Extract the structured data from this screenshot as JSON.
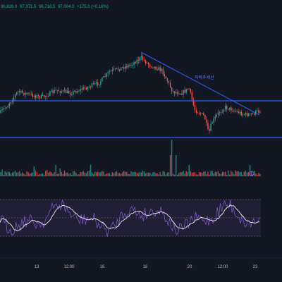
{
  "ohlc_readout": {
    "open": "96,829.0",
    "high": "97,371.5",
    "low": "96,716.5",
    "close": "97,004.0",
    "change": "+175.0 (+0.18%)"
  },
  "colors": {
    "background": "#131722",
    "up": "#26a69a",
    "down": "#ef5350",
    "drawing": "#2962ff",
    "rsi_band": "#7e57c2",
    "rsi_line": "#7e57c2",
    "rsi_ma": "#f0f0f0"
  },
  "annotation": {
    "label": "하락추세선"
  },
  "time_axis": [
    "13",
    "12:00",
    "16",
    "18",
    "20",
    "12:00",
    "23"
  ],
  "chart_data": [
    {
      "type": "candlestick",
      "description": "price pane",
      "trend_line_label": "하락추세선",
      "horizontal_levels": 2
    },
    {
      "type": "bar",
      "description": "volume pane"
    },
    {
      "type": "line",
      "description": "RSI pane with oscillator line and moving average",
      "series": [
        {
          "values": []
        },
        {
          "values": []
        }
      ]
    }
  ]
}
